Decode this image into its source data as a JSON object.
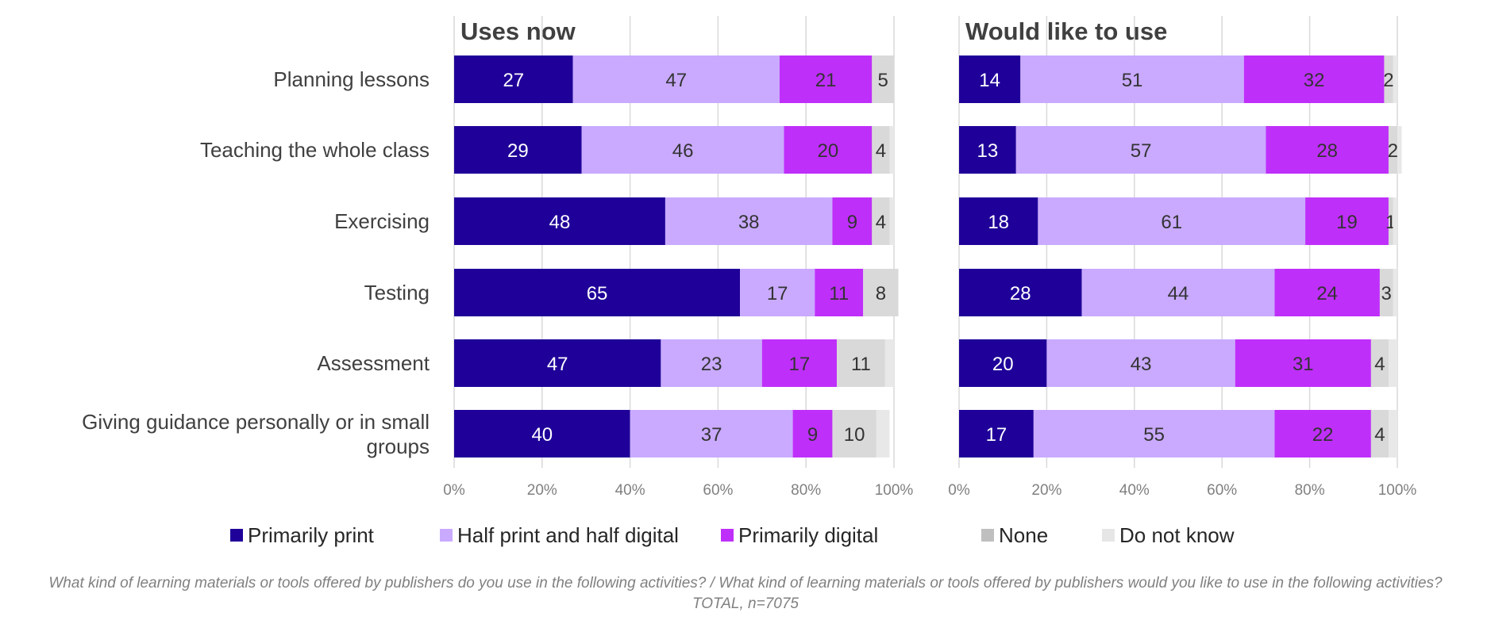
{
  "chart_data": [
    {
      "type": "bar",
      "orientation": "horizontal",
      "stacked": true,
      "title": "Uses now",
      "categories": [
        "Planning lessons",
        "Teaching the whole class",
        "Exercising",
        "Testing",
        "Assessment",
        "Giving guidance personally or in small groups"
      ],
      "series": [
        {
          "name": "Primarily print",
          "values": [
            27,
            29,
            48,
            65,
            47,
            40
          ]
        },
        {
          "name": "Half print and half digital",
          "values": [
            47,
            46,
            38,
            17,
            23,
            37
          ]
        },
        {
          "name": "Primarily digital",
          "values": [
            21,
            20,
            9,
            11,
            17,
            9
          ]
        },
        {
          "name": "None",
          "values": [
            5,
            4,
            4,
            8,
            11,
            10
          ]
        },
        {
          "name": "Do not know",
          "values": [
            0,
            1,
            1,
            0,
            2,
            3
          ]
        }
      ],
      "xlim": [
        0,
        100
      ],
      "xticks": [
        "0%",
        "20%",
        "40%",
        "60%",
        "80%",
        "100%"
      ],
      "grid": true
    },
    {
      "type": "bar",
      "orientation": "horizontal",
      "stacked": true,
      "title": "Would like to use",
      "categories": [
        "Planning lessons",
        "Teaching the whole class",
        "Exercising",
        "Testing",
        "Assessment",
        "Giving guidance personally or in small groups"
      ],
      "series": [
        {
          "name": "Primarily print",
          "values": [
            14,
            13,
            18,
            28,
            20,
            17
          ]
        },
        {
          "name": "Half print and half digital",
          "values": [
            51,
            57,
            61,
            44,
            43,
            55
          ]
        },
        {
          "name": "Primarily digital",
          "values": [
            32,
            28,
            19,
            24,
            31,
            22
          ]
        },
        {
          "name": "None",
          "values": [
            2,
            2,
            1,
            3,
            4,
            4
          ]
        },
        {
          "name": "Do not know",
          "values": [
            1,
            1,
            1,
            1,
            2,
            2
          ]
        }
      ],
      "xlim": [
        0,
        100
      ],
      "xticks": [
        "0%",
        "20%",
        "40%",
        "60%",
        "80%",
        "100%"
      ],
      "grid": true
    }
  ],
  "legend": {
    "placement": "bottom",
    "items": [
      {
        "name": "Primarily print",
        "color": "#1f0099"
      },
      {
        "name": "Half print and half digital",
        "color": "#c9aaff"
      },
      {
        "name": "Primarily digital",
        "color": "#bf2ffa"
      },
      {
        "name": "None",
        "color": "#bfbfbf"
      },
      {
        "name": "Do not know",
        "color": "#e6e6e6"
      }
    ]
  },
  "segment_colors": [
    "#1f0099",
    "#c9aaff",
    "#bf2ffa",
    "#d9d9d9",
    "#e8e8e8"
  ],
  "label_colors": [
    "#ffffff",
    "#333333",
    "#333333",
    "#333333",
    "#333333"
  ],
  "footnote": {
    "line1": "What kind of learning materials or tools offered by publishers do you use in the following activities? / What kind of learning materials or tools offered by publishers would you like to use in the following activities?",
    "line2": "TOTAL, n=7075"
  }
}
